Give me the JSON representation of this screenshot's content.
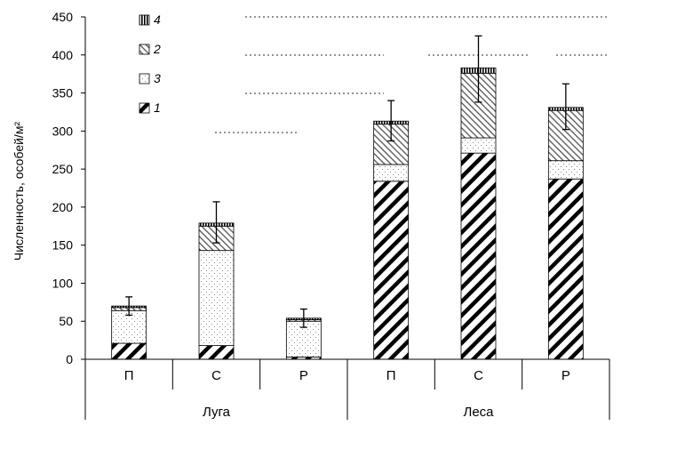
{
  "chart_data": {
    "type": "bar",
    "stacked": true,
    "ylabel": "Численность, особей/м²",
    "ylim": [
      0,
      450
    ],
    "yticks": [
      0,
      50,
      100,
      150,
      200,
      250,
      300,
      350,
      400,
      450
    ],
    "grid": false,
    "legend_position": "top-left",
    "groups": [
      {
        "label": "Луга",
        "categories": [
          "П",
          "С",
          "Р"
        ]
      },
      {
        "label": "Леса",
        "categories": [
          "П",
          "С",
          "Р"
        ]
      }
    ],
    "series": [
      {
        "name": "1",
        "values": [
          21,
          18,
          3,
          234,
          271,
          237
        ]
      },
      {
        "name": "3",
        "values": [
          43,
          125,
          47,
          22,
          20,
          24
        ]
      },
      {
        "name": "2",
        "values": [
          4,
          32,
          2,
          53,
          85,
          66
        ]
      },
      {
        "name": "4",
        "values": [
          2,
          4,
          2,
          4,
          7,
          4
        ]
      }
    ],
    "error": {
      "upper": [
        82,
        207,
        66,
        340,
        425,
        362
      ],
      "lower": [
        58,
        153,
        42,
        287,
        338,
        302
      ]
    },
    "series_colors": {
      "1": "#000000",
      "2": "#555555",
      "3": "#888888",
      "4": "#000000"
    }
  }
}
